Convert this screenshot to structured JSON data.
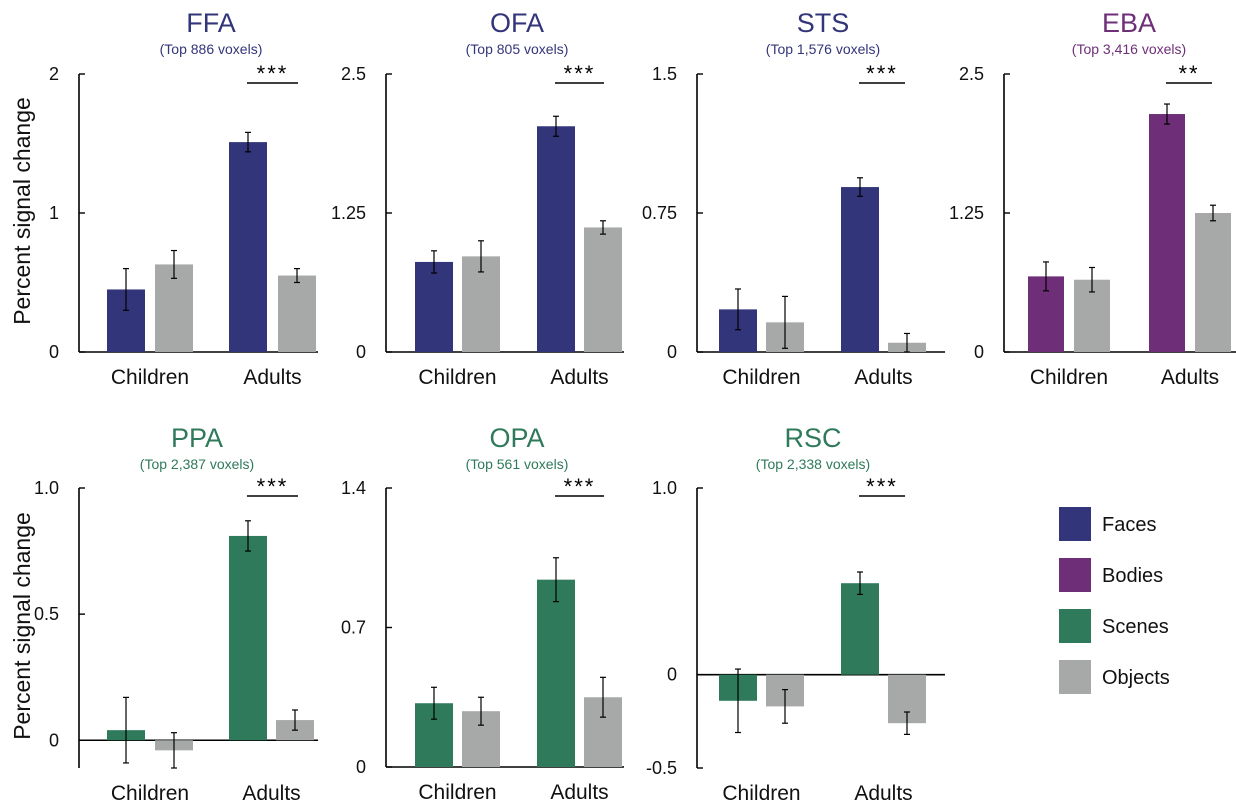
{
  "figure": {
    "ylabel": "Percent signal change"
  },
  "legend": {
    "items": [
      {
        "label": "Faces",
        "color": "#33357a"
      },
      {
        "label": "Bodies",
        "color": "#6e2f78"
      },
      {
        "label": "Scenes",
        "color": "#2f7a5b"
      },
      {
        "label": "Objects",
        "color": "#a6a9a8"
      }
    ]
  },
  "chart_data": [
    {
      "type": "bar",
      "title": "FFA",
      "subtitle": "(Top 886 voxels)",
      "title_color": "#33357a",
      "categories": [
        "Children",
        "Adults"
      ],
      "series": [
        {
          "name": "Faces",
          "color": "#33357a",
          "values": [
            0.45,
            1.51
          ],
          "errors": [
            0.15,
            0.07
          ]
        },
        {
          "name": "Objects",
          "color": "#a6a9a8",
          "values": [
            0.63,
            0.55
          ],
          "errors": [
            0.1,
            0.05
          ]
        }
      ],
      "ylim": [
        0,
        2
      ],
      "yticks": [
        "0",
        "1",
        "2"
      ],
      "ytick_values": [
        0,
        1,
        2
      ],
      "significance": "***",
      "show_ylabel": true
    },
    {
      "type": "bar",
      "title": "OFA",
      "subtitle": "(Top 805 voxels)",
      "title_color": "#33357a",
      "categories": [
        "Children",
        "Adults"
      ],
      "series": [
        {
          "name": "Faces",
          "color": "#33357a",
          "values": [
            0.81,
            2.03
          ],
          "errors": [
            0.1,
            0.09
          ]
        },
        {
          "name": "Objects",
          "color": "#a6a9a8",
          "values": [
            0.86,
            1.12
          ],
          "errors": [
            0.14,
            0.06
          ]
        }
      ],
      "ylim": [
        0,
        2.5
      ],
      "yticks": [
        "0",
        "1.25",
        "2.5"
      ],
      "ytick_values": [
        0,
        1.25,
        2.5
      ],
      "significance": "***",
      "show_ylabel": false
    },
    {
      "type": "bar",
      "title": "STS",
      "subtitle": "(Top 1,576 voxels)",
      "title_color": "#33357a",
      "categories": [
        "Children",
        "Adults"
      ],
      "series": [
        {
          "name": "Faces",
          "color": "#33357a",
          "values": [
            0.23,
            0.89
          ],
          "errors": [
            0.11,
            0.05
          ]
        },
        {
          "name": "Objects",
          "color": "#a6a9a8",
          "values": [
            0.16,
            0.05
          ],
          "errors": [
            0.14,
            0.05
          ]
        }
      ],
      "ylim": [
        0,
        1.5
      ],
      "yticks": [
        "0",
        "0.75",
        "1.5"
      ],
      "ytick_values": [
        0,
        0.75,
        1.5
      ],
      "significance": "***",
      "show_ylabel": false
    },
    {
      "type": "bar",
      "title": "EBA",
      "subtitle": "(Top 3,416 voxels)",
      "title_color": "#6e2f78",
      "categories": [
        "Children",
        "Adults"
      ],
      "series": [
        {
          "name": "Bodies",
          "color": "#6e2f78",
          "values": [
            0.68,
            2.14
          ],
          "errors": [
            0.13,
            0.09
          ]
        },
        {
          "name": "Objects",
          "color": "#a6a9a8",
          "values": [
            0.65,
            1.25
          ],
          "errors": [
            0.11,
            0.07
          ]
        }
      ],
      "ylim": [
        0,
        2.5
      ],
      "yticks": [
        "0",
        "1.25",
        "2.5"
      ],
      "ytick_values": [
        0,
        1.25,
        2.5
      ],
      "significance": "**",
      "show_ylabel": false
    },
    {
      "type": "bar",
      "title": "PPA",
      "subtitle": "(Top 2,387 voxels)",
      "title_color": "#2f7a5b",
      "categories": [
        "Children",
        "Adults"
      ],
      "series": [
        {
          "name": "Scenes",
          "color": "#2f7a5b",
          "values": [
            0.04,
            0.81
          ],
          "errors": [
            0.13,
            0.06
          ]
        },
        {
          "name": "Objects",
          "color": "#a6a9a8",
          "values": [
            -0.04,
            0.08
          ],
          "errors": [
            0.07,
            0.04
          ]
        }
      ],
      "ylim": [
        -0.11,
        1.0
      ],
      "yticks": [
        "0",
        "0.5",
        "1.0"
      ],
      "ytick_values": [
        0,
        0.5,
        1.0
      ],
      "significance": "***",
      "show_ylabel": true
    },
    {
      "type": "bar",
      "title": "OPA",
      "subtitle": "(Top 561 voxels)",
      "title_color": "#2f7a5b",
      "categories": [
        "Children",
        "Adults"
      ],
      "series": [
        {
          "name": "Scenes",
          "color": "#2f7a5b",
          "values": [
            0.32,
            0.94
          ],
          "errors": [
            0.08,
            0.11
          ]
        },
        {
          "name": "Objects",
          "color": "#a6a9a8",
          "values": [
            0.28,
            0.35
          ],
          "errors": [
            0.07,
            0.1
          ]
        }
      ],
      "ylim": [
        0,
        1.4
      ],
      "yticks": [
        "0",
        "0.7",
        "1.4"
      ],
      "ytick_values": [
        0,
        0.7,
        1.4
      ],
      "significance": "***",
      "show_ylabel": false
    },
    {
      "type": "bar",
      "title": "RSC",
      "subtitle": "(Top 2,338 voxels)",
      "title_color": "#2f7a5b",
      "categories": [
        "Children",
        "Adults"
      ],
      "series": [
        {
          "name": "Scenes",
          "color": "#2f7a5b",
          "values": [
            -0.14,
            0.49
          ],
          "errors": [
            0.17,
            0.06
          ]
        },
        {
          "name": "Objects",
          "color": "#a6a9a8",
          "values": [
            -0.17,
            -0.26
          ],
          "errors": [
            0.09,
            0.06
          ]
        }
      ],
      "ylim": [
        -0.5,
        1.0
      ],
      "yticks": [
        "-0.5",
        "0",
        "1.0"
      ],
      "ytick_values": [
        -0.5,
        0,
        1.0
      ],
      "significance": "***",
      "show_ylabel": false
    }
  ]
}
